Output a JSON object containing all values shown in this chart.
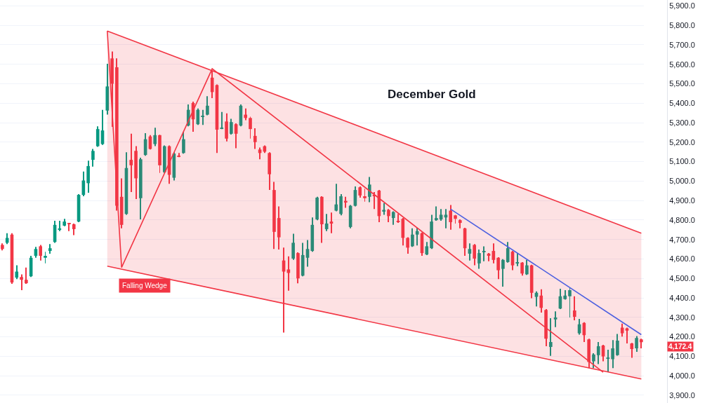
{
  "chart_data": {
    "type": "candlestick",
    "title": "December Gold",
    "categories": [
      null,
      null,
      null,
      null,
      null,
      null,
      null,
      null,
      null,
      null,
      null,
      null,
      null,
      null,
      null,
      null,
      null,
      null,
      null,
      null,
      null,
      null,
      null,
      null,
      null,
      null,
      null,
      null,
      null,
      null,
      null,
      null,
      null,
      null,
      null,
      null,
      null,
      null,
      null,
      null,
      null,
      null,
      null,
      null,
      null,
      null,
      null,
      null,
      null,
      null,
      null,
      null,
      null,
      null,
      null,
      null,
      null,
      null,
      null,
      null,
      null,
      null,
      null,
      null,
      null,
      null,
      null,
      null,
      null,
      null,
      null,
      null,
      null,
      null,
      null,
      null,
      null,
      null,
      null,
      null,
      null,
      null,
      null,
      null,
      null,
      null,
      null,
      null,
      null,
      null,
      null,
      null,
      null,
      null,
      null,
      null,
      null,
      null,
      null,
      null,
      null,
      null,
      null,
      null,
      null,
      null,
      null,
      null,
      null,
      null,
      null,
      null,
      null,
      null,
      null,
      null,
      null,
      null,
      null,
      null,
      null,
      null,
      null,
      null,
      null,
      null,
      null,
      null,
      null,
      null,
      null,
      null,
      null,
      null,
      null
    ],
    "ohlc": [
      [
        4672,
        4680,
        4644,
        4651
      ],
      [
        4683,
        4732,
        4676,
        4708
      ],
      [
        4725,
        4732,
        4472,
        4479
      ],
      [
        4504,
        4567,
        4496,
        4535
      ],
      [
        4507,
        4521,
        4440,
        4493
      ],
      [
        4493,
        4556,
        4472,
        4475
      ],
      [
        4511,
        4616,
        4507,
        4606
      ],
      [
        4616,
        4662,
        4606,
        4651
      ],
      [
        4665,
        4672,
        4592,
        4616
      ],
      [
        4606,
        4637,
        4577,
        4616
      ],
      [
        4641,
        4676,
        4627,
        4655
      ],
      [
        4687,
        4796,
        4683,
        4775
      ],
      [
        4750,
        4796,
        4743,
        4757
      ],
      [
        4771,
        4806,
        4768,
        4792
      ],
      [
        4782,
        4782,
        4743,
        4778
      ],
      [
        4778,
        4782,
        4722,
        4753
      ],
      [
        4792,
        4933,
        4789,
        4929
      ],
      [
        4929,
        5049,
        4922,
        5003
      ],
      [
        4989,
        5105,
        4940,
        5077
      ],
      [
        5109,
        5165,
        5074,
        5155
      ],
      [
        5179,
        5281,
        5176,
        5267
      ],
      [
        5190,
        5366,
        5186,
        5260
      ],
      [
        5362,
        5602,
        5341,
        5486
      ],
      [
        5630,
        5665,
        5278,
        5500
      ],
      [
        5584,
        5630,
        4848,
        4873
      ],
      [
        4919,
        5014,
        4757,
        4775
      ],
      [
        4831,
        5148,
        4827,
        5067
      ],
      [
        5109,
        5243,
        4944,
        5081
      ],
      [
        5155,
        5179,
        4908,
        5014
      ],
      [
        4912,
        5120,
        4803,
        5112
      ],
      [
        5134,
        5246,
        5130,
        5215
      ],
      [
        5229,
        5236,
        5162,
        5165
      ],
      [
        5190,
        5274,
        5179,
        5236
      ],
      [
        5236,
        5239,
        5042,
        5081
      ],
      [
        5046,
        5183,
        5042,
        5179
      ],
      [
        5179,
        5183,
        4986,
        5032
      ],
      [
        5017,
        5148,
        5003,
        5141
      ],
      [
        5130,
        5144,
        5123,
        5127
      ],
      [
        5144,
        5253,
        5141,
        5215
      ],
      [
        5285,
        5394,
        5281,
        5366
      ],
      [
        5401,
        5408,
        5253,
        5317
      ],
      [
        5292,
        5373,
        5288,
        5366
      ],
      [
        5331,
        5366,
        5288,
        5334
      ],
      [
        5341,
        5436,
        5338,
        5387
      ],
      [
        5531,
        5567,
        5426,
        5457
      ],
      [
        5493,
        5496,
        5144,
        5264
      ],
      [
        5271,
        5355,
        5267,
        5274
      ],
      [
        5306,
        5348,
        5204,
        5218
      ],
      [
        5243,
        5320,
        5239,
        5303
      ],
      [
        5292,
        5296,
        5169,
        5243
      ],
      [
        5285,
        5394,
        5281,
        5387
      ],
      [
        5341,
        5373,
        5313,
        5324
      ],
      [
        5324,
        5331,
        5218,
        5267
      ],
      [
        5232,
        5271,
        5165,
        5200
      ],
      [
        5162,
        5172,
        5112,
        5144
      ],
      [
        5179,
        5183,
        5144,
        5151
      ],
      [
        5144,
        5148,
        4954,
        5035
      ],
      [
        4954,
        4996,
        4651,
        4739
      ],
      [
        4810,
        4870,
        4648,
        4711
      ],
      [
        4592,
        4658,
        4222,
        4535
      ],
      [
        4546,
        4613,
        4437,
        4528
      ],
      [
        4602,
        4729,
        4595,
        4683
      ],
      [
        4630,
        4634,
        4475,
        4500
      ],
      [
        4514,
        4683,
        4511,
        4620
      ],
      [
        4606,
        4697,
        4560,
        4651
      ],
      [
        4641,
        4813,
        4637,
        4775
      ],
      [
        4803,
        4919,
        4799,
        4915
      ],
      [
        4919,
        4922,
        4683,
        4778
      ],
      [
        4753,
        4831,
        4743,
        4782
      ],
      [
        4792,
        4838,
        4732,
        4785
      ],
      [
        4848,
        4986,
        4845,
        4880
      ],
      [
        4831,
        4933,
        4824,
        4922
      ],
      [
        4898,
        4919,
        4863,
        4891
      ],
      [
        4764,
        4877,
        4757,
        4873
      ],
      [
        4873,
        4972,
        4870,
        4954
      ],
      [
        4968,
        4972,
        4915,
        4926
      ],
      [
        4922,
        4961,
        4894,
        4912
      ],
      [
        4919,
        5021,
        4891,
        4982
      ],
      [
        4929,
        4944,
        4856,
        4922
      ],
      [
        4951,
        4954,
        4789,
        4820
      ],
      [
        4845,
        4887,
        4827,
        4852
      ],
      [
        4852,
        4856,
        4789,
        4820
      ],
      [
        4810,
        4845,
        4775,
        4841
      ],
      [
        4796,
        4831,
        4785,
        4792
      ],
      [
        4806,
        4810,
        4669,
        4708
      ],
      [
        4708,
        4711,
        4627,
        4658
      ],
      [
        4665,
        4757,
        4662,
        4725
      ],
      [
        4725,
        4760,
        4669,
        4743
      ],
      [
        4732,
        4736,
        4616,
        4630
      ],
      [
        4623,
        4687,
        4620,
        4665
      ],
      [
        4655,
        4827,
        4651,
        4792
      ],
      [
        4799,
        4870,
        4796,
        4810
      ],
      [
        4803,
        4856,
        4796,
        4827
      ],
      [
        4813,
        4856,
        4757,
        4827
      ],
      [
        4848,
        4877,
        4750,
        4789
      ],
      [
        4824,
        4827,
        4782,
        4806
      ],
      [
        4799,
        4803,
        4757,
        4785
      ],
      [
        4757,
        4760,
        4616,
        4655
      ],
      [
        4627,
        4680,
        4592,
        4651
      ],
      [
        4672,
        4676,
        4567,
        4602
      ],
      [
        4577,
        4648,
        4549,
        4630
      ],
      [
        4637,
        4665,
        4588,
        4641
      ],
      [
        4627,
        4630,
        4588,
        4616
      ],
      [
        4641,
        4680,
        4577,
        4595
      ],
      [
        4606,
        4609,
        4496,
        4542
      ],
      [
        4549,
        4599,
        4458,
        4595
      ],
      [
        4584,
        4687,
        4581,
        4655
      ],
      [
        4637,
        4641,
        4542,
        4567
      ],
      [
        4577,
        4630,
        4563,
        4581
      ],
      [
        4581,
        4584,
        4514,
        4525
      ],
      [
        4521,
        4595,
        4518,
        4567
      ],
      [
        4567,
        4570,
        4398,
        4426
      ],
      [
        4405,
        4433,
        4356,
        4426
      ],
      [
        4412,
        4444,
        4324,
        4349
      ],
      [
        4338,
        4342,
        4152,
        4190
      ],
      [
        4148,
        4296,
        4102,
        4173
      ],
      [
        4289,
        4331,
        4250,
        4299
      ],
      [
        4345,
        4447,
        4342,
        4408
      ],
      [
        4394,
        4440,
        4391,
        4412
      ],
      [
        4408,
        4451,
        4299,
        4440
      ],
      [
        4335,
        4408,
        4285,
        4303
      ],
      [
        4218,
        4292,
        4211,
        4264
      ],
      [
        4271,
        4275,
        4173,
        4208
      ],
      [
        4187,
        4190,
        4039,
        4071
      ],
      [
        4074,
        4116,
        4039,
        4109
      ],
      [
        4106,
        4173,
        4060,
        4152
      ],
      [
        4155,
        4159,
        4074,
        4099
      ],
      [
        4088,
        4134,
        4018,
        4092
      ],
      [
        4085,
        4183,
        4039,
        4141
      ],
      [
        4106,
        4215,
        4103,
        4180
      ],
      [
        4247,
        4268,
        4201,
        4218
      ],
      [
        4243,
        4247,
        4166,
        4232
      ],
      [
        4166,
        4169,
        4092,
        4137
      ],
      [
        4141,
        4204,
        4123,
        4194
      ],
      [
        4187,
        4190,
        4141,
        4172.4
      ]
    ],
    "colors": [
      "#f23645",
      "#089981",
      "#f23645",
      "#089981",
      "#f23645",
      "#f23645",
      "#089981",
      "#089981",
      "#f23645",
      "#089981",
      "#089981",
      "#089981",
      "#089981",
      "#089981",
      "#f23645",
      "#f23645",
      "#089981",
      "#089981",
      "#089981",
      "#089981",
      "#089981",
      "#089981",
      "#089981",
      "#f23645",
      "#f23645",
      "#f23645",
      "#089981",
      "#f23645",
      "#f23645",
      "#089981",
      "#089981",
      "#f23645",
      "#089981",
      "#f23645",
      "#089981",
      "#f23645",
      "#089981",
      "#f23645",
      "#089981",
      "#089981",
      "#f23645",
      "#089981",
      "#089981",
      "#089981",
      "#f23645",
      "#f23645",
      "#089981",
      "#f23645",
      "#089981",
      "#f23645",
      "#089981",
      "#f23645",
      "#f23645",
      "#f23645",
      "#f23645",
      "#f23645",
      "#f23645",
      "#f23645",
      "#f23645",
      "#f23645",
      "#f23645",
      "#089981",
      "#f23645",
      "#089981",
      "#089981",
      "#089981",
      "#089981",
      "#f23645",
      "#089981",
      "#f23645",
      "#089981",
      "#089981",
      "#f23645",
      "#089981",
      "#089981",
      "#f23645",
      "#f23645",
      "#089981",
      "#f23645",
      "#f23645",
      "#089981",
      "#f23645",
      "#089981",
      "#f23645",
      "#f23645",
      "#f23645",
      "#089981",
      "#089981",
      "#f23645",
      "#089981",
      "#089981",
      "#089981",
      "#089981",
      "#089981",
      "#f23645",
      "#f23645",
      "#f23645",
      "#f23645",
      "#089981",
      "#f23645",
      "#089981",
      "#089981",
      "#f23645",
      "#f23645",
      "#f23645",
      "#089981",
      "#089981",
      "#f23645",
      "#089981",
      "#f23645",
      "#089981",
      "#f23645",
      "#089981",
      "#f23645",
      "#f23645",
      "#089981",
      "#089981",
      "#089981",
      "#089981",
      "#089981",
      "#f23645",
      "#089981",
      "#f23645",
      "#f23645",
      "#089981",
      "#089981",
      "#f23645",
      "#089981",
      "#089981",
      "#089981",
      "#f23645",
      "#f23645",
      "#f23645",
      "#089981",
      "#f23645"
    ],
    "series": [
      {
        "type": "line",
        "color": "#f23645",
        "values": [
          null,
          null,
          null,
          null,
          null,
          null,
          null,
          null,
          null,
          null,
          null,
          null,
          null,
          null,
          null,
          null,
          null,
          null,
          null,
          null,
          null,
          null,
          5771,
          null,
          null,
          null,
          null,
          null,
          null,
          null,
          null,
          null,
          null,
          null,
          null,
          null,
          null,
          null,
          null,
          null,
          null,
          null,
          null,
          null,
          null,
          null,
          null,
          null,
          null,
          null,
          null,
          null,
          null,
          null,
          null,
          null,
          null,
          null,
          null,
          null,
          null,
          null,
          null,
          null,
          null,
          null,
          null,
          null,
          null,
          null,
          null,
          null,
          null,
          null,
          null,
          null,
          null,
          null,
          null,
          null,
          null,
          null,
          null,
          null,
          null,
          null,
          null,
          null,
          null,
          null,
          null,
          null,
          null,
          null,
          null,
          null,
          null,
          null,
          null,
          null,
          null,
          null,
          null,
          null,
          null,
          null,
          null,
          null,
          null,
          null,
          null,
          null,
          null,
          null,
          null,
          null,
          null,
          null,
          null,
          null,
          null,
          null,
          null,
          null,
          null,
          null,
          null,
          null,
          null,
          null,
          null,
          null,
          null,
          null,
          4732
        ],
        "lower": [
          null,
          null,
          null,
          null,
          null,
          null,
          null,
          null,
          null,
          null,
          null,
          null,
          null,
          null,
          null,
          null,
          null,
          null,
          null,
          null,
          null,
          null,
          4563,
          null,
          null,
          null,
          null,
          null,
          null,
          null,
          null,
          null,
          null,
          null,
          null,
          null,
          null,
          null,
          null,
          null,
          null,
          null,
          null,
          null,
          null,
          null,
          null,
          null,
          null,
          null,
          null,
          null,
          null,
          null,
          null,
          null,
          null,
          null,
          null,
          null,
          null,
          null,
          null,
          null,
          null,
          null,
          null,
          null,
          null,
          null,
          null,
          null,
          null,
          null,
          null,
          null,
          null,
          null,
          null,
          null,
          null,
          null,
          null,
          null,
          null,
          null,
          null,
          null,
          null,
          null,
          null,
          null,
          null,
          null,
          null,
          null,
          null,
          null,
          null,
          null,
          null,
          null,
          null,
          null,
          null,
          null,
          null,
          null,
          null,
          null,
          null,
          null,
          null,
          null,
          null,
          null,
          null,
          null,
          null,
          null,
          null,
          null,
          null,
          null,
          null,
          null,
          null,
          null,
          null,
          null,
          null,
          null,
          null,
          null,
          3983
        ],
        "upper": [
          null,
          null,
          null,
          null,
          null,
          null,
          null,
          null,
          null,
          null,
          null,
          null,
          null,
          null,
          null,
          null,
          null,
          null,
          null,
          null,
          null,
          null,
          5771,
          null,
          null,
          null,
          null,
          null,
          null,
          null,
          null,
          null,
          null,
          null,
          null,
          null,
          null,
          null,
          null,
          null,
          null,
          null,
          null,
          null,
          null,
          null,
          null,
          null,
          null,
          null,
          null,
          null,
          null,
          null,
          null,
          null,
          null,
          null,
          null,
          null,
          null,
          null,
          null,
          null,
          null,
          null,
          null,
          null,
          null,
          null,
          null,
          null,
          null,
          null,
          null,
          null,
          null,
          null,
          null,
          null,
          null,
          null,
          null,
          null,
          null,
          null,
          null,
          null,
          null,
          null,
          null,
          null,
          null,
          null,
          null,
          null,
          null,
          null,
          null,
          null,
          null,
          null,
          null,
          null,
          null,
          null,
          null,
          null,
          null,
          null,
          null,
          null,
          null,
          null,
          null,
          null,
          null,
          null,
          null,
          null,
          null,
          null,
          null,
          null,
          null,
          null,
          null,
          null,
          null,
          null,
          null,
          null,
          null,
          null,
          4732
        ]
      },
      {
        "type": "line",
        "color": "#f23645",
        "values": [
          null,
          null,
          null,
          null,
          null,
          null,
          null,
          null,
          null,
          null,
          null,
          null,
          null,
          null,
          null,
          null,
          null,
          null,
          null,
          null,
          null,
          null,
          4563,
          null,
          null,
          null,
          null,
          null,
          null,
          null,
          null,
          null,
          null,
          null,
          null,
          null,
          null,
          null,
          null,
          null,
          null,
          null,
          null,
          null,
          null,
          null,
          null,
          null,
          null,
          null,
          null,
          null,
          null,
          null,
          null,
          null,
          null,
          null,
          null,
          null,
          null,
          null,
          null,
          null,
          null,
          null,
          null,
          null,
          null,
          null,
          null,
          null,
          null,
          null,
          null,
          null,
          null,
          null,
          null,
          null,
          null,
          null,
          null,
          null,
          null,
          null,
          null,
          null,
          null,
          null,
          null,
          null,
          null,
          null,
          null,
          null,
          null,
          null,
          null,
          null,
          null,
          null,
          null,
          null,
          null,
          null,
          null,
          null,
          null,
          null,
          null,
          null,
          null,
          null,
          null,
          null,
          null,
          null,
          null,
          null,
          null,
          null,
          null,
          null,
          null,
          null,
          null,
          null,
          null,
          null,
          null,
          null,
          null,
          null,
          3983
        ]
      },
      {
        "type": "line",
        "color": "#f23645",
        "values": [
          null,
          null,
          null,
          null,
          null,
          null,
          null,
          null,
          null,
          null,
          null,
          null,
          null,
          null,
          null,
          null,
          null,
          null,
          null,
          null,
          null,
          null,
          5771,
          null,
          null,
          4556,
          null,
          null,
          null,
          null,
          null,
          null,
          null,
          null,
          null,
          null,
          null,
          null,
          null,
          null,
          null,
          null,
          null,
          null,
          5577,
          null,
          null,
          null,
          null,
          null,
          null,
          null,
          null,
          null,
          null,
          null,
          null,
          null,
          null,
          null,
          null,
          null,
          null,
          null,
          null,
          null,
          null,
          null,
          null,
          null,
          null,
          null,
          null,
          null,
          null,
          null,
          null,
          null,
          null,
          null,
          null,
          null,
          null,
          null,
          null,
          null,
          null,
          null,
          null,
          null,
          null,
          null,
          null,
          null,
          null,
          null,
          null,
          null,
          null,
          null,
          null,
          null,
          null,
          null,
          null,
          null,
          null,
          null,
          null,
          null,
          null,
          null,
          null,
          null,
          null,
          null,
          null,
          null,
          null,
          null,
          null,
          null,
          null,
          null,
          null,
          null,
          4018,
          null,
          null,
          null,
          null,
          null,
          null,
          null,
          null
        ]
      },
      {
        "type": "line",
        "color": "#4c5fe0",
        "values": [
          null,
          null,
          null,
          null,
          null,
          null,
          null,
          null,
          null,
          null,
          null,
          null,
          null,
          null,
          null,
          null,
          null,
          null,
          null,
          null,
          null,
          null,
          null,
          null,
          null,
          null,
          null,
          null,
          null,
          null,
          null,
          null,
          null,
          null,
          null,
          null,
          null,
          null,
          null,
          null,
          null,
          null,
          null,
          null,
          null,
          null,
          null,
          null,
          null,
          null,
          null,
          null,
          null,
          null,
          null,
          null,
          null,
          null,
          null,
          null,
          null,
          null,
          null,
          null,
          null,
          null,
          null,
          null,
          null,
          null,
          null,
          null,
          null,
          null,
          null,
          null,
          null,
          null,
          null,
          null,
          null,
          null,
          null,
          null,
          null,
          null,
          null,
          null,
          null,
          null,
          null,
          null,
          null,
          null,
          4856,
          null,
          null,
          null,
          null,
          null,
          null,
          null,
          null,
          null,
          null,
          null,
          null,
          null,
          null,
          null,
          null,
          null,
          null,
          null,
          null,
          null,
          null,
          null,
          null,
          null,
          null,
          null,
          null,
          null,
          null,
          null,
          null,
          null,
          null,
          null,
          null,
          null,
          null,
          null,
          4211
        ]
      }
    ],
    "annotations": [
      "Falling Wedge",
      "4,172.4"
    ],
    "ylim": [
      3860,
      5930
    ],
    "yticks": [
      {
        "value": 3900,
        "label": "3,900.0"
      },
      {
        "value": 4000,
        "label": "4,000.0"
      },
      {
        "value": 4100,
        "label": "4,100.0"
      },
      {
        "value": 4200,
        "label": "4,200.0"
      },
      {
        "value": 4300,
        "label": "4,300.0"
      },
      {
        "value": 4400,
        "label": "4,400.0"
      },
      {
        "value": 4500,
        "label": "4,500.0"
      },
      {
        "value": 4600,
        "label": "4,600.0"
      },
      {
        "value": 4700,
        "label": "4,700.0"
      },
      {
        "value": 4800,
        "label": "4,800.0"
      },
      {
        "value": 4900,
        "label": "4,900.0"
      },
      {
        "value": 5000,
        "label": "5,000.0"
      },
      {
        "value": 5100,
        "label": "5,100.0"
      },
      {
        "value": 5200,
        "label": "5,200.0"
      },
      {
        "value": 5300,
        "label": "5,300.0"
      },
      {
        "value": 5400,
        "label": "5,400.0"
      },
      {
        "value": 5500,
        "label": "5,500.0"
      },
      {
        "value": 5600,
        "label": "5,600.0"
      },
      {
        "value": 5700,
        "label": "5,700.0"
      },
      {
        "value": 5800,
        "label": "5,800.0"
      },
      {
        "value": 5900,
        "label": "5,900.0"
      }
    ],
    "grid": "y",
    "tick_labels": "y"
  }
}
